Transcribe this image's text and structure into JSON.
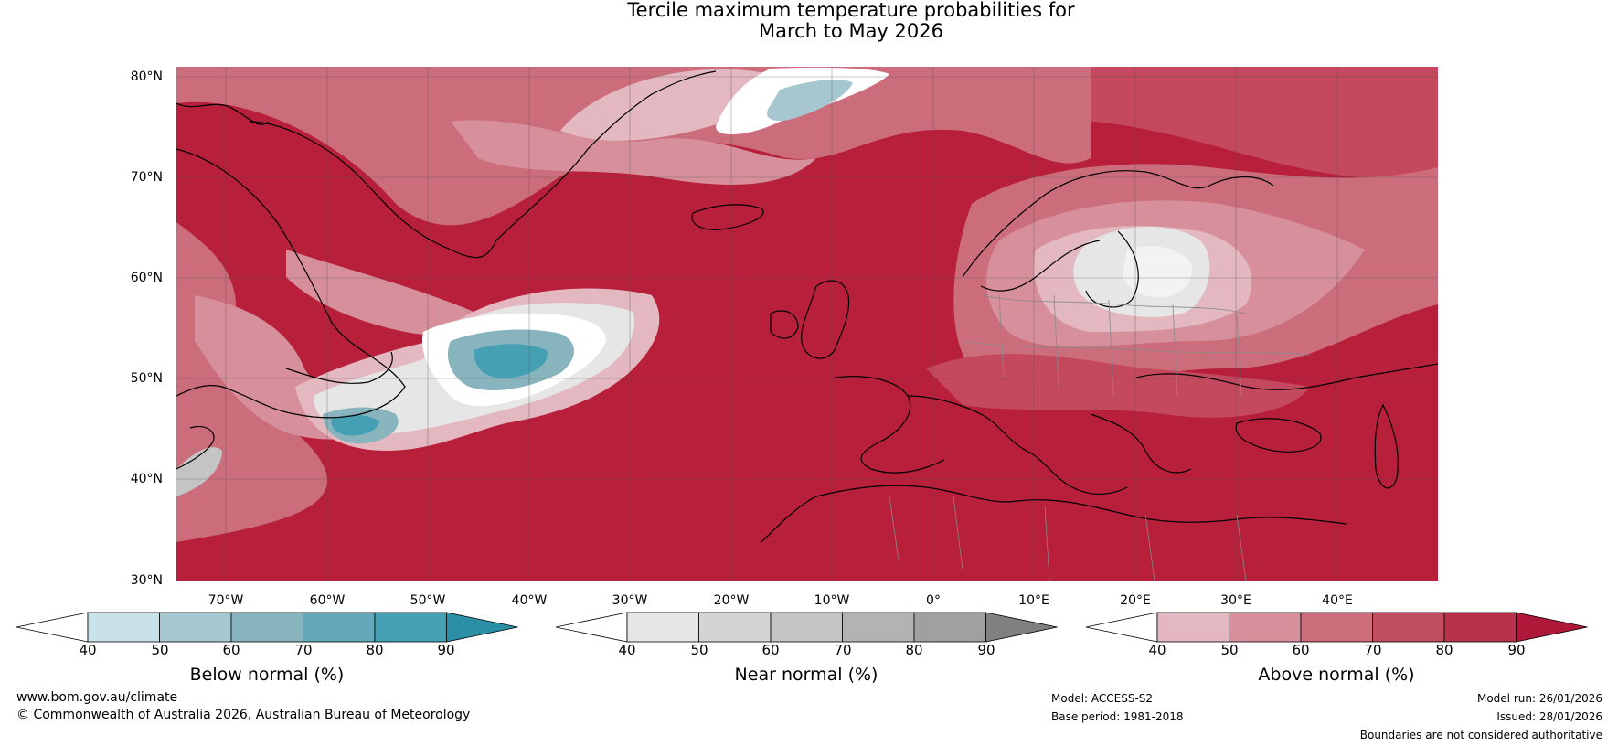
{
  "title": {
    "line1": "Tercile maximum temperature probabilities for",
    "line2": "March to May 2026"
  },
  "map": {
    "lat_labels": [
      "80°N",
      "70°N",
      "60°N",
      "50°N",
      "40°N",
      "30°N"
    ],
    "lon_labels": [
      "70°W",
      "60°W",
      "50°W",
      "40°W",
      "30°W",
      "20°W",
      "10°W",
      "0°",
      "10°E",
      "20°E",
      "30°E",
      "40°E"
    ]
  },
  "legends": {
    "below": {
      "title": "Below normal (%)",
      "ticks": [
        "40",
        "50",
        "60",
        "70",
        "80",
        "90"
      ],
      "colors": [
        "#ffffff",
        "#c9e1e8",
        "#a6c7cf",
        "#87b4bd",
        "#65a9b9",
        "#46a0b3",
        "#2b8fa6"
      ]
    },
    "near": {
      "title": "Near normal (%)",
      "ticks": [
        "40",
        "50",
        "60",
        "70",
        "80",
        "90"
      ],
      "colors": [
        "#ffffff",
        "#e6e6e6",
        "#d4d4d4",
        "#c4c4c4",
        "#b3b3b3",
        "#a0a0a0",
        "#808080"
      ]
    },
    "above": {
      "title": "Above normal (%)",
      "ticks": [
        "40",
        "50",
        "60",
        "70",
        "80",
        "90"
      ],
      "colors": [
        "#ffffff",
        "#e3b8c0",
        "#d68f9b",
        "#cc6d7c",
        "#c14d61",
        "#b9324b",
        "#b0183a"
      ]
    }
  },
  "footer": {
    "url": "www.bom.gov.au/climate",
    "copyright": "© Commonwealth of Australia 2026, Australian Bureau of Meteorology",
    "model": "Model: ACCESS-S2",
    "base_period": "Base period: 1981-2018",
    "model_run": "Model run: 26/01/2026",
    "issued": "Issued: 28/01/2026",
    "boundaries": "Boundaries are not considered authoritative"
  }
}
